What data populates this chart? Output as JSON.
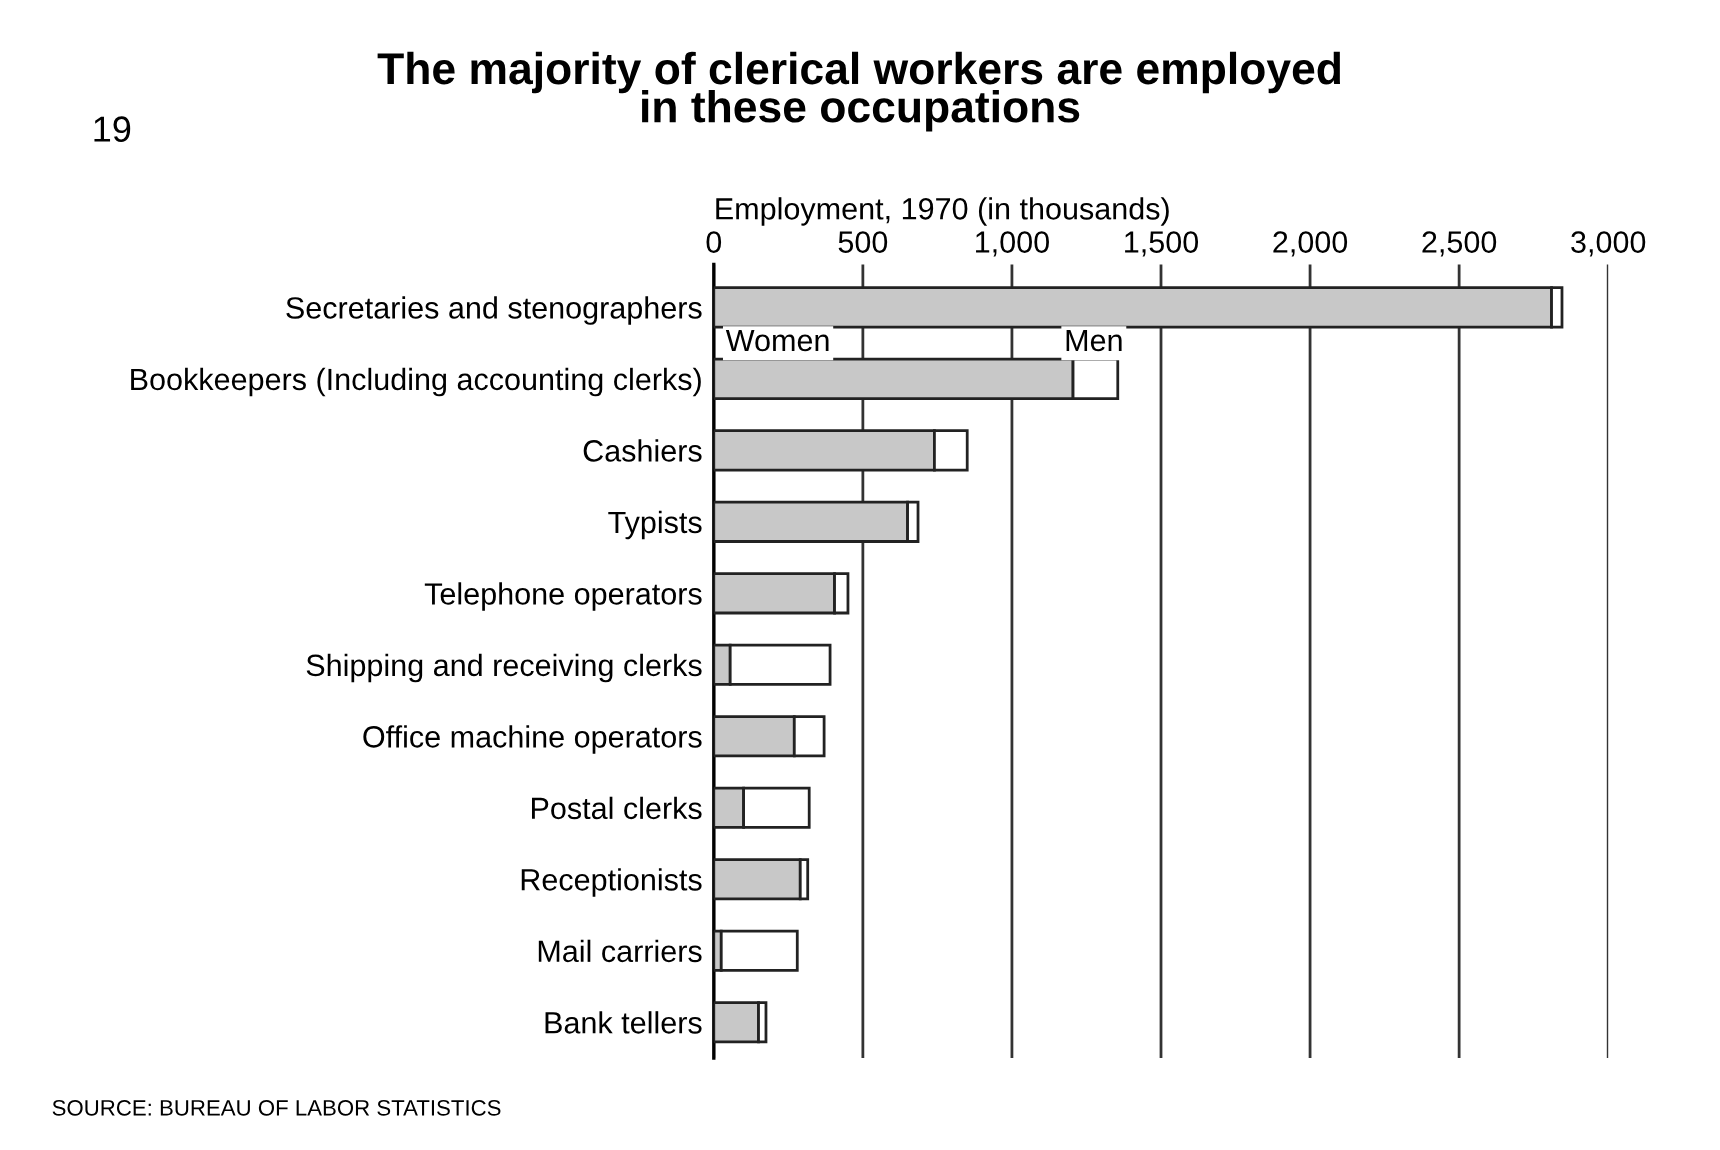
{
  "chart_data": {
    "type": "bar",
    "orientation": "horizontal",
    "stacked": true,
    "title": "The majority of clerical workers are employed\nin these occupations",
    "xlabel": "Employment, 1970 (in thousands)",
    "categories": [
      "Secretaries and stenographers",
      "Bookkeepers (Including accounting clerks)",
      "Cashiers",
      "Typists",
      "Telephone operators",
      "Shipping and receiving clerks",
      "Office machine operators",
      "Postal clerks",
      "Receptionists",
      "Mail carriers",
      "Bank tellers"
    ],
    "series": [
      {
        "name": "Women",
        "color": "#c8c8c8",
        "values": [
          2810,
          1205,
          740,
          650,
          405,
          55,
          270,
          100,
          290,
          25,
          150
        ]
      },
      {
        "name": "Men",
        "color": "#ffffff",
        "values": [
          35,
          150,
          110,
          35,
          45,
          335,
          100,
          220,
          25,
          255,
          25
        ]
      }
    ],
    "xlim": [
      0,
      3000
    ],
    "xticks": [
      0,
      500,
      {
        "value": 1000,
        "label": "1,000"
      },
      {
        "value": 1500,
        "label": "1,500"
      },
      {
        "value": 2000,
        "label": "2,000"
      },
      {
        "value": 2500,
        "label": "2,500"
      },
      {
        "value": 3000,
        "label": "3,000"
      }
    ],
    "grid": "x",
    "legend": false,
    "annotations": [
      "19",
      "SOURCE: BUREAU OF LABOR STATISTICS"
    ]
  }
}
